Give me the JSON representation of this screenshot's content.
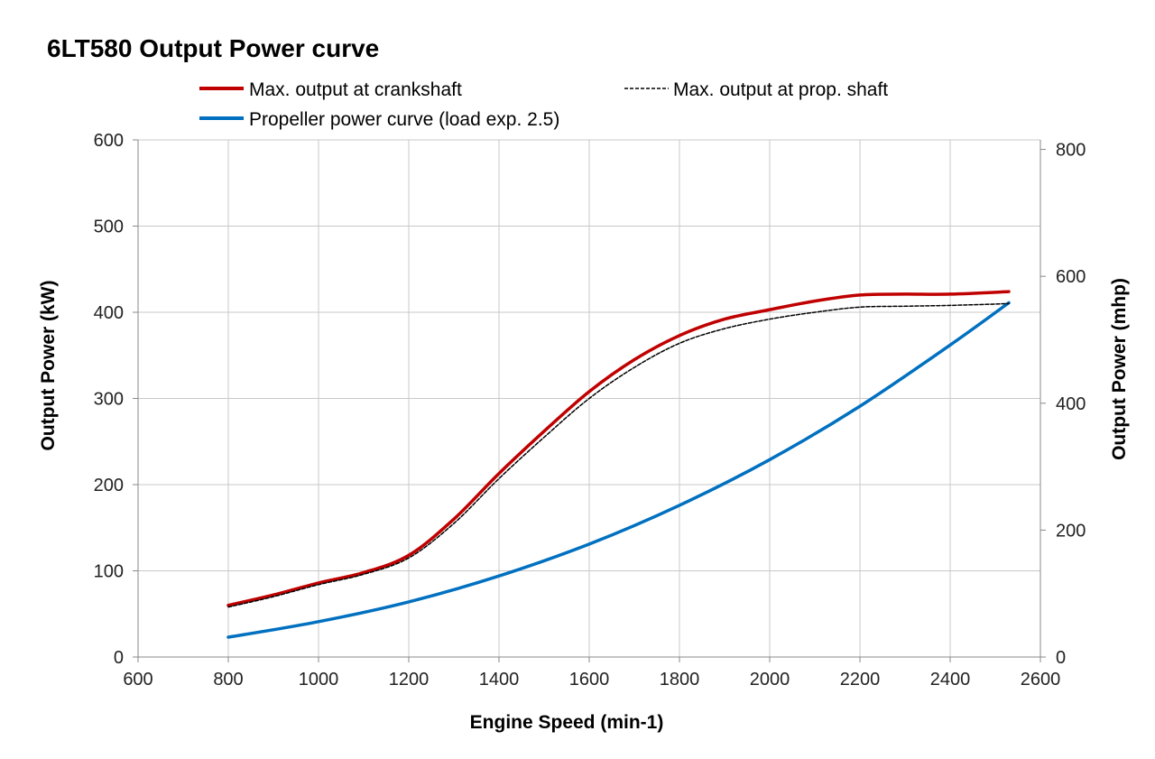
{
  "chart_data": {
    "type": "line",
    "title": "6LT580 Output Power curve",
    "xlabel": "Engine Speed (min-1)",
    "ylabel": "Output Power (kW)",
    "y2label": "Output Power (mhp)",
    "xlim": [
      600,
      2600
    ],
    "ylim": [
      0,
      600
    ],
    "y2lim": [
      0,
      815
    ],
    "xticks": [
      600,
      800,
      1000,
      1200,
      1400,
      1600,
      1800,
      2000,
      2200,
      2400,
      2600
    ],
    "yticks": [
      0,
      100,
      200,
      300,
      400,
      500,
      600
    ],
    "y2ticks": [
      0,
      200,
      400,
      600,
      800
    ],
    "grid": true,
    "legend_position": "top",
    "series": [
      {
        "name": "Max. output at crankshaft",
        "color": "#c00000",
        "style": "solid",
        "x": [
          800,
          900,
          1000,
          1100,
          1200,
          1300,
          1400,
          1500,
          1600,
          1700,
          1800,
          1900,
          2000,
          2100,
          2200,
          2300,
          2400,
          2530
        ],
        "values": [
          60,
          72,
          86,
          98,
          118,
          160,
          213,
          262,
          308,
          345,
          373,
          392,
          403,
          413,
          420,
          421,
          421,
          424
        ]
      },
      {
        "name": "Max. output at prop. shaft",
        "color": "#000000",
        "style": "dashed",
        "x": [
          800,
          900,
          1000,
          1100,
          1200,
          1300,
          1400,
          1500,
          1600,
          1700,
          1800,
          1900,
          2000,
          2100,
          2200,
          2300,
          2400,
          2530
        ],
        "values": [
          58,
          70,
          84,
          96,
          115,
          155,
          207,
          255,
          300,
          336,
          364,
          381,
          392,
          400,
          406,
          407,
          408,
          410
        ]
      },
      {
        "name": "Propeller power curve (load exp. 2.5)",
        "color": "#0070c0",
        "style": "solid",
        "x": [
          800,
          1000,
          1200,
          1400,
          1600,
          1800,
          2000,
          2200,
          2400,
          2530
        ],
        "values": [
          23,
          41,
          64,
          94,
          131,
          176,
          229,
          291,
          362,
          411
        ]
      }
    ]
  }
}
